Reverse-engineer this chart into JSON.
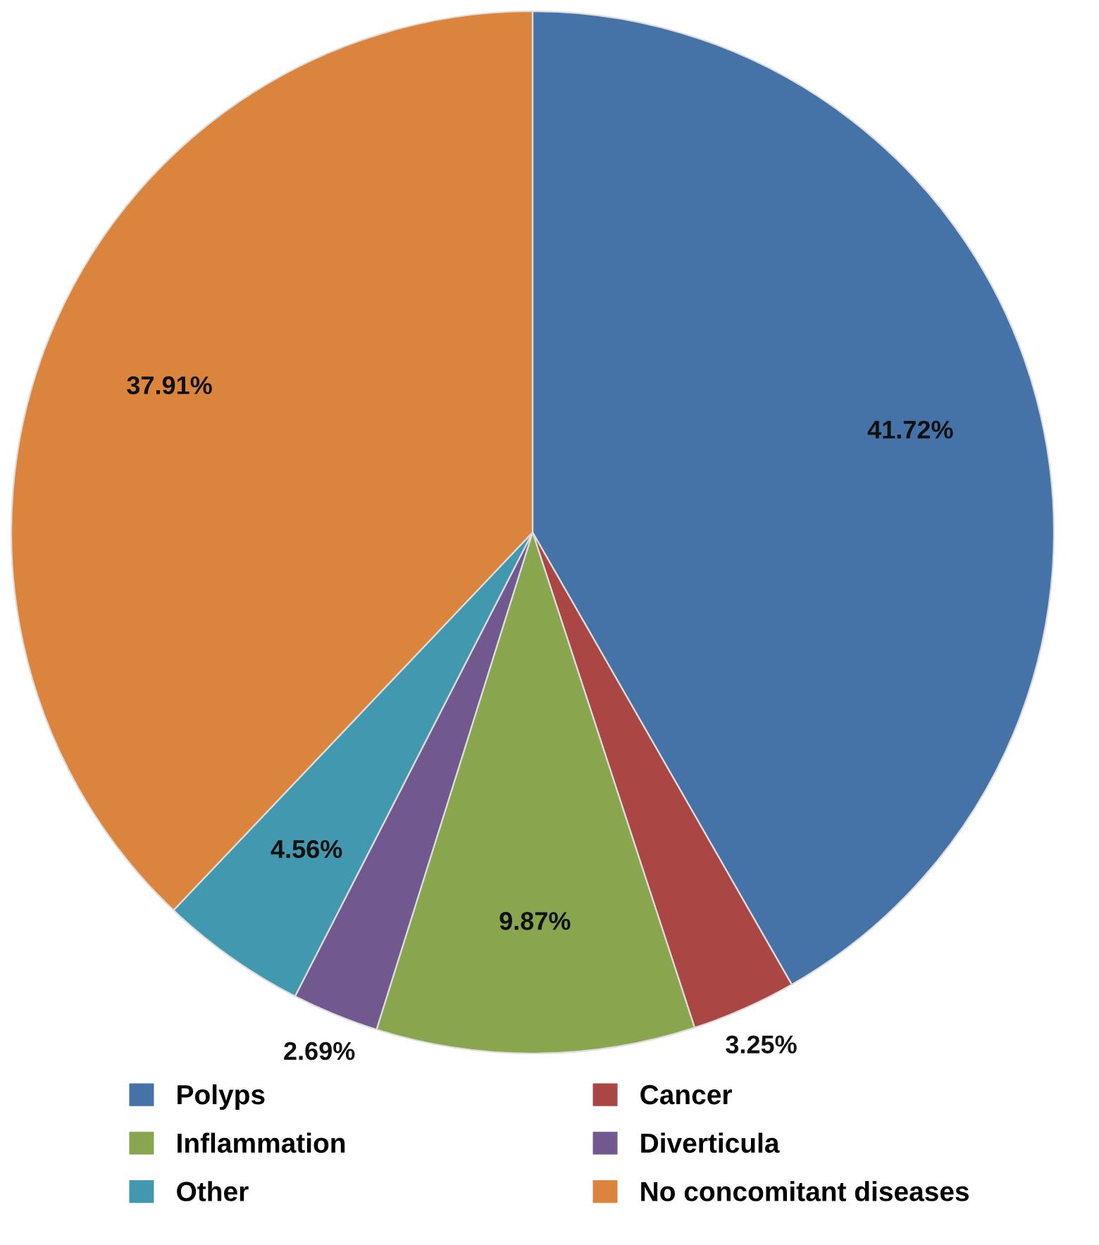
{
  "chart_data": {
    "type": "pie",
    "categories": [
      "Polyps",
      "Cancer",
      "Inflammation",
      "Diverticula",
      "Other",
      "No concomitant diseases"
    ],
    "values": [
      41.72,
      3.25,
      9.87,
      2.69,
      4.56,
      37.91
    ],
    "colors": [
      "#4572a7",
      "#aa4643",
      "#89a54e",
      "#71588f",
      "#4198af",
      "#db843d"
    ],
    "value_labels": [
      "41.72%",
      "3.25%",
      "9.87%",
      "2.69%",
      "4.56%",
      "37.91%"
    ],
    "legend": "bottom"
  }
}
